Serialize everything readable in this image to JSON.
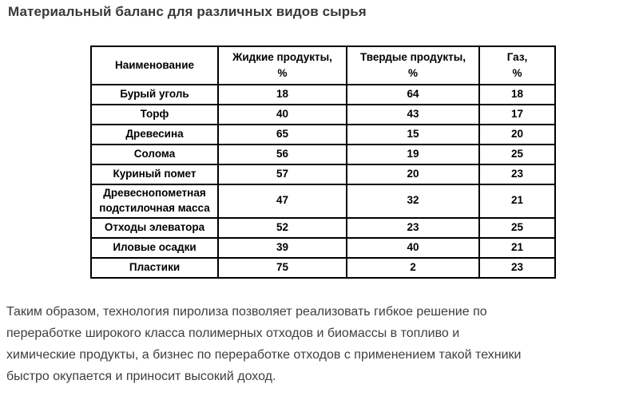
{
  "page": {
    "title": "Материальный баланс для различных видов сырья",
    "paragraph": "Таким образом, технология пиролиза позволяет реализовать гибкое решение по\nпереработке широкого класса полимерных отходов и биомассы в топливо и\nхимические продукты, а бизнес по переработке отходов с применением такой техники\nбыстро окупается и приносит высокий доход."
  },
  "table": {
    "columns": [
      "Наименование",
      "Жидкие продукты,\n%",
      "Твердые продукты,\n%",
      "Газ,\n%"
    ],
    "rows": [
      [
        "Бурый уголь",
        18,
        64,
        18
      ],
      [
        "Торф",
        40,
        43,
        17
      ],
      [
        "Древесина",
        65,
        15,
        20
      ],
      [
        "Солома",
        56,
        19,
        25
      ],
      [
        "Куриный помет",
        57,
        20,
        23
      ],
      [
        "Древеснопометная подстилочная масса",
        47,
        32,
        21
      ],
      [
        "Отходы элеватора",
        52,
        23,
        25
      ],
      [
        "Иловые осадки",
        39,
        40,
        21
      ],
      [
        "Пластики",
        75,
        2,
        23
      ]
    ]
  }
}
